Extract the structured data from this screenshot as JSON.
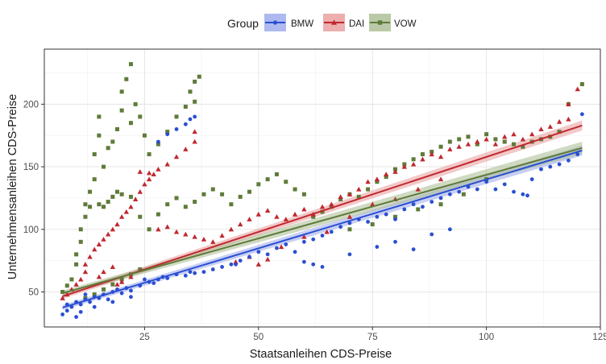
{
  "chart_data": {
    "type": "scatter",
    "title": "",
    "xlabel": "Staatsanleihen CDS-Preise",
    "ylabel": "Unternehmensanleihen CDS-Preise",
    "xlim": [
      3,
      125
    ],
    "ylim": [
      22,
      244
    ],
    "x_ticks": [
      25,
      50,
      75,
      100,
      125
    ],
    "y_ticks": [
      50,
      100,
      150,
      200
    ],
    "grid": true,
    "legend": {
      "title": "Group",
      "position": "top",
      "entries": [
        "BMW",
        "DAI",
        "VOW"
      ]
    },
    "series": [
      {
        "name": "BMW",
        "color": "#2a4fd1",
        "band_color": "#9aa8ec",
        "marker": "circle",
        "trend": {
          "x": [
            7,
            121
          ],
          "y": [
            37.5,
            163
          ],
          "band_halfwidth": [
            2,
            4
          ]
        },
        "points": [
          [
            7,
            32
          ],
          [
            8,
            35
          ],
          [
            8,
            40
          ],
          [
            9,
            38
          ],
          [
            10,
            42
          ],
          [
            11,
            40
          ],
          [
            12,
            44
          ],
          [
            12,
            48
          ],
          [
            13,
            42
          ],
          [
            14,
            46
          ],
          [
            15,
            45
          ],
          [
            16,
            48
          ],
          [
            17,
            44
          ],
          [
            18,
            50
          ],
          [
            19,
            52
          ],
          [
            20,
            49
          ],
          [
            21,
            53
          ],
          [
            22,
            51
          ],
          [
            24,
            55
          ],
          [
            25,
            60
          ],
          [
            26,
            58
          ],
          [
            27,
            57
          ],
          [
            28,
            60
          ],
          [
            29,
            62
          ],
          [
            30,
            61
          ],
          [
            32,
            64
          ],
          [
            34,
            63
          ],
          [
            35,
            66
          ],
          [
            36,
            65
          ],
          [
            38,
            66
          ],
          [
            40,
            68
          ],
          [
            42,
            70
          ],
          [
            44,
            72
          ],
          [
            45,
            72
          ],
          [
            46,
            75
          ],
          [
            48,
            78
          ],
          [
            50,
            82
          ],
          [
            52,
            80
          ],
          [
            54,
            85
          ],
          [
            56,
            88
          ],
          [
            58,
            82
          ],
          [
            60,
            90
          ],
          [
            62,
            92
          ],
          [
            64,
            95
          ],
          [
            66,
            98
          ],
          [
            68,
            102
          ],
          [
            70,
            105
          ],
          [
            72,
            108
          ],
          [
            74,
            106
          ],
          [
            76,
            110
          ],
          [
            78,
            112
          ],
          [
            80,
            108
          ],
          [
            82,
            116
          ],
          [
            84,
            120
          ],
          [
            86,
            118
          ],
          [
            88,
            122
          ],
          [
            90,
            125
          ],
          [
            92,
            128
          ],
          [
            94,
            130
          ],
          [
            96,
            134
          ],
          [
            98,
            132
          ],
          [
            100,
            138
          ],
          [
            102,
            132
          ],
          [
            104,
            136
          ],
          [
            106,
            130
          ],
          [
            108,
            128
          ],
          [
            109,
            127
          ],
          [
            110,
            140
          ],
          [
            112,
            148
          ],
          [
            114,
            150
          ],
          [
            116,
            152
          ],
          [
            118,
            155
          ],
          [
            120,
            160
          ],
          [
            121,
            192
          ],
          [
            35,
            188
          ],
          [
            34,
            184
          ],
          [
            32,
            180
          ],
          [
            30,
            176
          ],
          [
            28,
            170
          ],
          [
            36,
            190
          ],
          [
            60,
            74
          ],
          [
            62,
            72
          ],
          [
            64,
            70
          ],
          [
            70,
            80
          ],
          [
            76,
            86
          ],
          [
            80,
            90
          ],
          [
            84,
            84
          ],
          [
            88,
            96
          ],
          [
            92,
            100
          ],
          [
            10,
            30
          ],
          [
            11,
            34
          ],
          [
            14,
            38
          ],
          [
            18,
            42
          ],
          [
            22,
            46
          ]
        ]
      },
      {
        "name": "DAI",
        "color": "#c0282f",
        "band_color": "#e79a9a",
        "marker": "triangle",
        "trend": {
          "x": [
            7,
            121
          ],
          "y": [
            46.5,
            183
          ],
          "band_halfwidth": [
            2,
            4
          ]
        },
        "points": [
          [
            7,
            45
          ],
          [
            8,
            48
          ],
          [
            9,
            52
          ],
          [
            10,
            56
          ],
          [
            11,
            60
          ],
          [
            12,
            66
          ],
          [
            12,
            72
          ],
          [
            13,
            78
          ],
          [
            14,
            84
          ],
          [
            15,
            88
          ],
          [
            16,
            92
          ],
          [
            17,
            96
          ],
          [
            18,
            100
          ],
          [
            19,
            104
          ],
          [
            20,
            110
          ],
          [
            21,
            114
          ],
          [
            22,
            118
          ],
          [
            23,
            124
          ],
          [
            24,
            130
          ],
          [
            25,
            136
          ],
          [
            26,
            140
          ],
          [
            27,
            144
          ],
          [
            28,
            148
          ],
          [
            30,
            152
          ],
          [
            32,
            158
          ],
          [
            34,
            164
          ],
          [
            36,
            170
          ],
          [
            36,
            178
          ],
          [
            24,
            146
          ],
          [
            26,
            145
          ],
          [
            28,
            100
          ],
          [
            30,
            102
          ],
          [
            32,
            98
          ],
          [
            34,
            96
          ],
          [
            36,
            94
          ],
          [
            38,
            92
          ],
          [
            40,
            90
          ],
          [
            42,
            95
          ],
          [
            44,
            100
          ],
          [
            46,
            104
          ],
          [
            48,
            108
          ],
          [
            50,
            112
          ],
          [
            52,
            115
          ],
          [
            54,
            110
          ],
          [
            56,
            108
          ],
          [
            58,
            112
          ],
          [
            60,
            116
          ],
          [
            62,
            112
          ],
          [
            64,
            118
          ],
          [
            66,
            120
          ],
          [
            68,
            126
          ],
          [
            70,
            128
          ],
          [
            72,
            132
          ],
          [
            74,
            138
          ],
          [
            76,
            140
          ],
          [
            78,
            144
          ],
          [
            80,
            146
          ],
          [
            82,
            150
          ],
          [
            84,
            152
          ],
          [
            86,
            156
          ],
          [
            88,
            160
          ],
          [
            90,
            158
          ],
          [
            92,
            164
          ],
          [
            94,
            166
          ],
          [
            96,
            168
          ],
          [
            98,
            170
          ],
          [
            100,
            172
          ],
          [
            102,
            168
          ],
          [
            104,
            174
          ],
          [
            106,
            176
          ],
          [
            108,
            172
          ],
          [
            110,
            176
          ],
          [
            112,
            180
          ],
          [
            114,
            182
          ],
          [
            116,
            186
          ],
          [
            118,
            188
          ],
          [
            120,
            212
          ],
          [
            118,
            200
          ],
          [
            15,
            62
          ],
          [
            16,
            66
          ],
          [
            18,
            70
          ],
          [
            19,
            56
          ],
          [
            20,
            58
          ],
          [
            22,
            62
          ],
          [
            45,
            74
          ],
          [
            48,
            78
          ],
          [
            50,
            72
          ],
          [
            52,
            76
          ],
          [
            55,
            86
          ],
          [
            60,
            94
          ],
          [
            65,
            98
          ],
          [
            70,
            110
          ],
          [
            75,
            120
          ],
          [
            80,
            124
          ],
          [
            85,
            132
          ],
          [
            90,
            140
          ]
        ]
      },
      {
        "name": "VOW",
        "color": "#5f7b3a",
        "band_color": "#a9bb91",
        "marker": "square",
        "trend": {
          "x": [
            7,
            121
          ],
          "y": [
            49,
            165
          ],
          "band_halfwidth": [
            2,
            5
          ]
        },
        "points": [
          [
            7,
            50
          ],
          [
            8,
            55
          ],
          [
            9,
            60
          ],
          [
            10,
            72
          ],
          [
            10,
            80
          ],
          [
            11,
            90
          ],
          [
            11,
            100
          ],
          [
            12,
            110
          ],
          [
            12,
            120
          ],
          [
            13,
            118
          ],
          [
            13,
            130
          ],
          [
            14,
            140
          ],
          [
            14,
            160
          ],
          [
            15,
            175
          ],
          [
            15,
            190
          ],
          [
            16,
            150
          ],
          [
            17,
            165
          ],
          [
            18,
            170
          ],
          [
            19,
            180
          ],
          [
            20,
            195
          ],
          [
            20,
            210
          ],
          [
            21,
            220
          ],
          [
            22,
            232
          ],
          [
            22,
            185
          ],
          [
            23,
            200
          ],
          [
            24,
            190
          ],
          [
            25,
            175
          ],
          [
            26,
            160
          ],
          [
            28,
            168
          ],
          [
            30,
            178
          ],
          [
            32,
            190
          ],
          [
            34,
            198
          ],
          [
            35,
            210
          ],
          [
            36,
            218
          ],
          [
            37,
            222
          ],
          [
            36,
            202
          ],
          [
            15,
            120
          ],
          [
            16,
            118
          ],
          [
            17,
            122
          ],
          [
            18,
            126
          ],
          [
            19,
            130
          ],
          [
            20,
            128
          ],
          [
            22,
            126
          ],
          [
            24,
            110
          ],
          [
            26,
            100
          ],
          [
            28,
            112
          ],
          [
            30,
            120
          ],
          [
            32,
            125
          ],
          [
            34,
            118
          ],
          [
            36,
            122
          ],
          [
            38,
            128
          ],
          [
            40,
            132
          ],
          [
            42,
            128
          ],
          [
            44,
            120
          ],
          [
            46,
            126
          ],
          [
            48,
            130
          ],
          [
            50,
            136
          ],
          [
            52,
            140
          ],
          [
            54,
            144
          ],
          [
            56,
            138
          ],
          [
            58,
            132
          ],
          [
            60,
            128
          ],
          [
            62,
            110
          ],
          [
            64,
            114
          ],
          [
            66,
            118
          ],
          [
            68,
            124
          ],
          [
            70,
            128
          ],
          [
            72,
            126
          ],
          [
            74,
            132
          ],
          [
            76,
            138
          ],
          [
            78,
            142
          ],
          [
            80,
            148
          ],
          [
            82,
            152
          ],
          [
            84,
            156
          ],
          [
            86,
            160
          ],
          [
            88,
            162
          ],
          [
            90,
            166
          ],
          [
            92,
            170
          ],
          [
            94,
            172
          ],
          [
            96,
            174
          ],
          [
            98,
            168
          ],
          [
            100,
            176
          ],
          [
            102,
            172
          ],
          [
            104,
            170
          ],
          [
            106,
            168
          ],
          [
            108,
            166
          ],
          [
            110,
            170
          ],
          [
            112,
            172
          ],
          [
            114,
            174
          ],
          [
            116,
            178
          ],
          [
            118,
            200
          ],
          [
            121,
            216
          ],
          [
            70,
            100
          ],
          [
            75,
            104
          ],
          [
            80,
            110
          ],
          [
            85,
            116
          ],
          [
            90,
            120
          ],
          [
            95,
            128
          ],
          [
            100,
            140
          ],
          [
            12,
            45
          ],
          [
            14,
            48
          ],
          [
            16,
            52
          ],
          [
            18,
            56
          ],
          [
            20,
            60
          ],
          [
            22,
            64
          ],
          [
            24,
            68
          ]
        ]
      }
    ]
  }
}
